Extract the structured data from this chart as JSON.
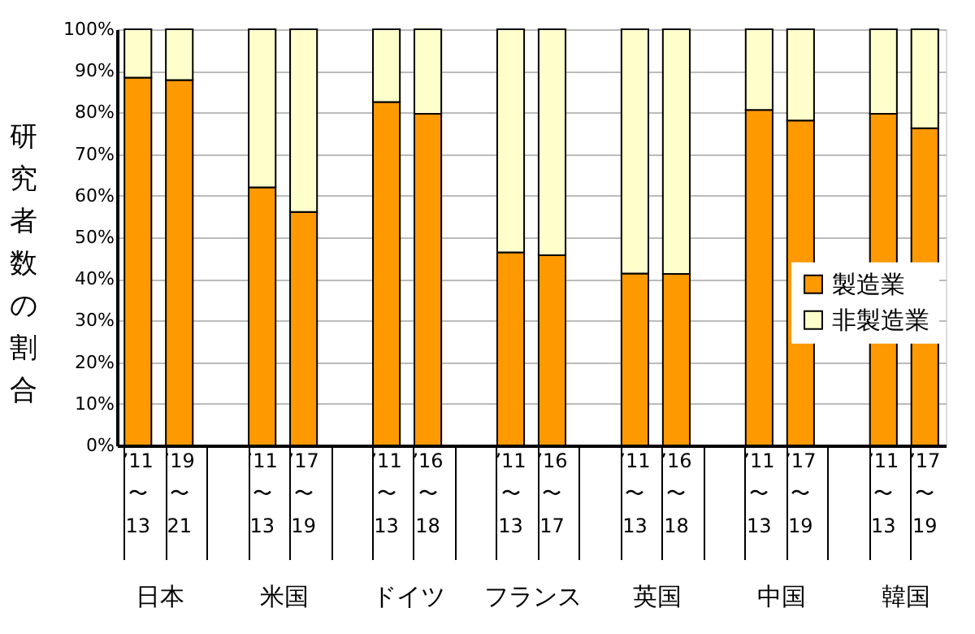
{
  "chart_data": {
    "type": "bar",
    "stacked": true,
    "ylabel": "研究者数の割合",
    "categories": [
      "’11〜13",
      "’19〜21",
      null,
      "’11〜13",
      "’17〜19",
      null,
      "’11〜13",
      "’16〜18",
      null,
      "’11〜13",
      "’16〜17",
      null,
      "’11〜13",
      "’16〜18",
      null,
      "’11〜13",
      "’17〜19",
      null,
      "’11〜13",
      "’17〜19"
    ],
    "series": [
      {
        "name": "製造業",
        "color": "#ff9900",
        "values": [
          88.4,
          87.8,
          null,
          62.0,
          56.1,
          null,
          82.5,
          79.7,
          null,
          46.4,
          45.7,
          null,
          41.3,
          41.2,
          null,
          80.6,
          78.1,
          null,
          79.7,
          76.2
        ]
      },
      {
        "name": "非製造業",
        "color": "#ffffcc",
        "values": [
          11.6,
          12.2,
          null,
          38.0,
          43.9,
          null,
          17.5,
          20.3,
          null,
          53.6,
          54.3,
          null,
          58.7,
          58.8,
          null,
          19.4,
          21.9,
          null,
          20.3,
          23.8
        ]
      }
    ],
    "ylim": [
      0,
      100
    ],
    "yticks": [
      {
        "value": 0,
        "label": "0%"
      },
      {
        "value": 10,
        "label": "10%"
      },
      {
        "value": 20,
        "label": "20%"
      },
      {
        "value": 30,
        "label": "30%"
      },
      {
        "value": 40,
        "label": "40%"
      },
      {
        "value": 50,
        "label": "50%"
      },
      {
        "value": 60,
        "label": "60%"
      },
      {
        "value": 70,
        "label": "70%"
      },
      {
        "value": 80,
        "label": "80%"
      },
      {
        "value": 90,
        "label": "90%"
      },
      {
        "value": 100,
        "label": "100%"
      }
    ],
    "annotations": [
      "日本",
      "米国",
      "ドイツ",
      "フランス",
      "英国",
      "中国",
      "韓国"
    ],
    "grid": "y",
    "legend": "right"
  }
}
